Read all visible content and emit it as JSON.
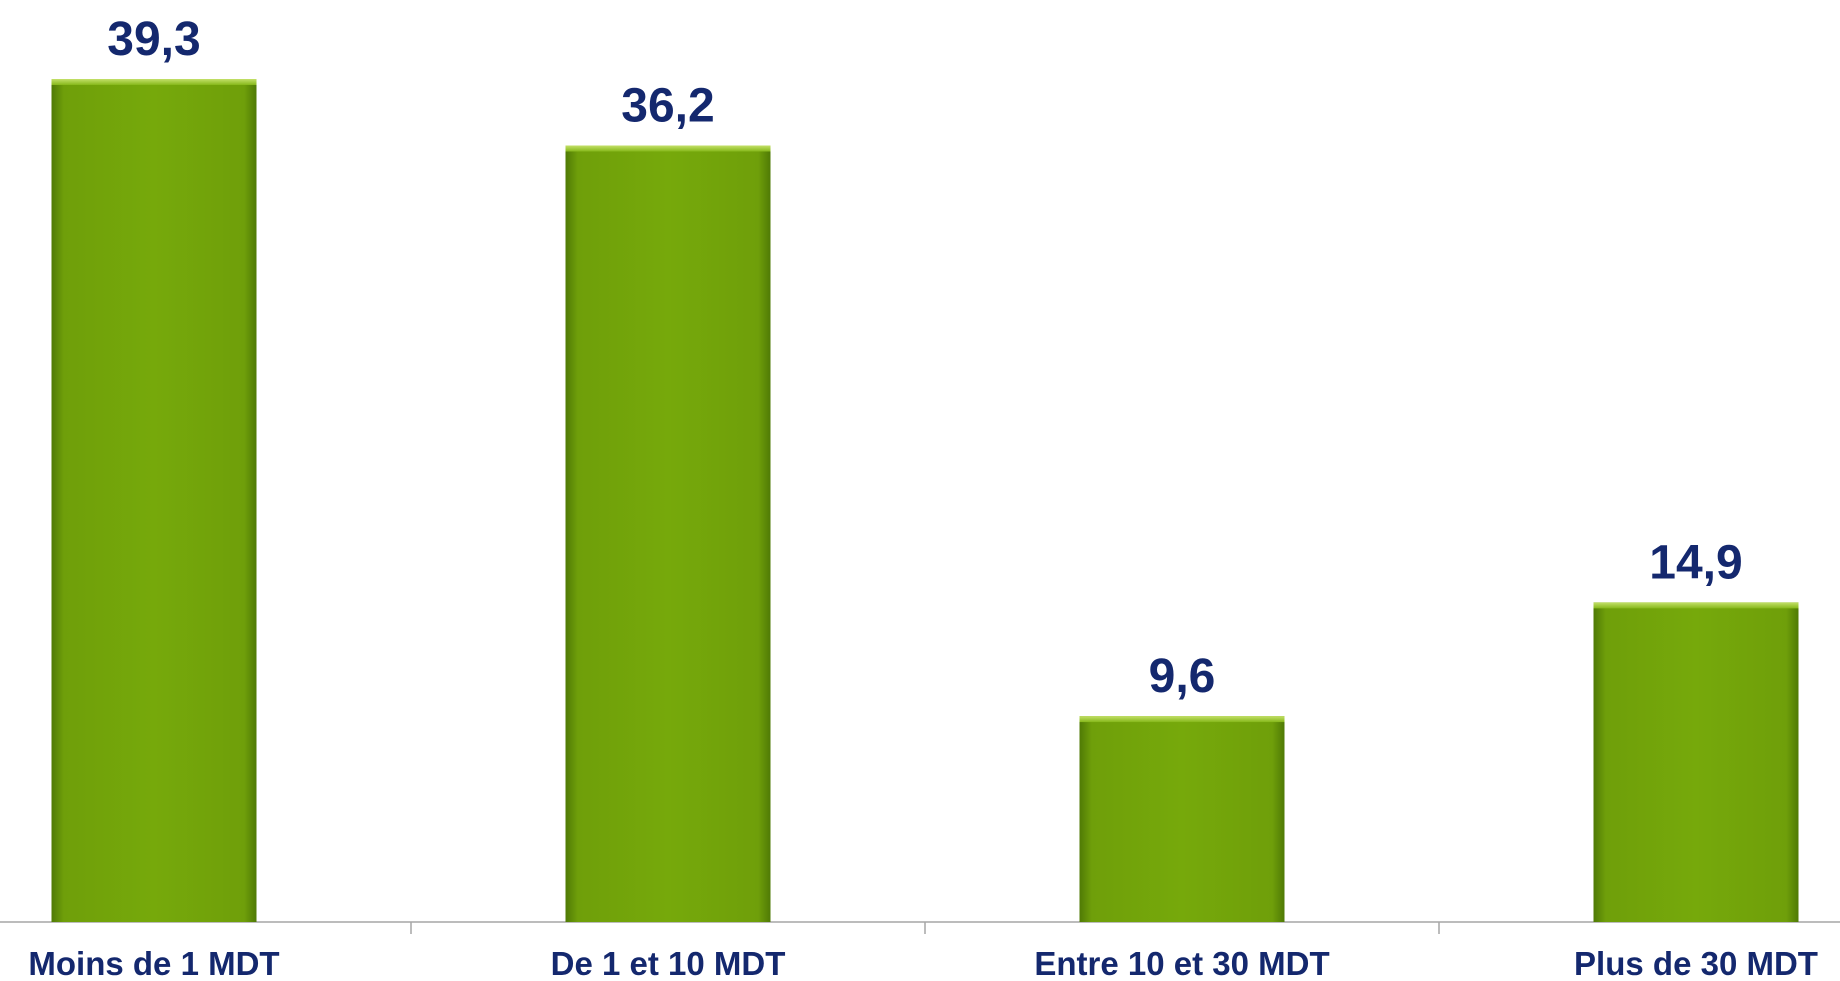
{
  "chart_data": {
    "type": "bar",
    "categories": [
      "Moins de 1 MDT",
      "De 1 et 10 MDT",
      "Entre 10 et 30 MDT",
      "Plus de 30 MDT"
    ],
    "values": [
      39.3,
      36.2,
      9.6,
      14.9
    ],
    "value_labels": [
      "39,3",
      "36,2",
      "9,6",
      "14,9"
    ],
    "color": "#72a80a"
  }
}
